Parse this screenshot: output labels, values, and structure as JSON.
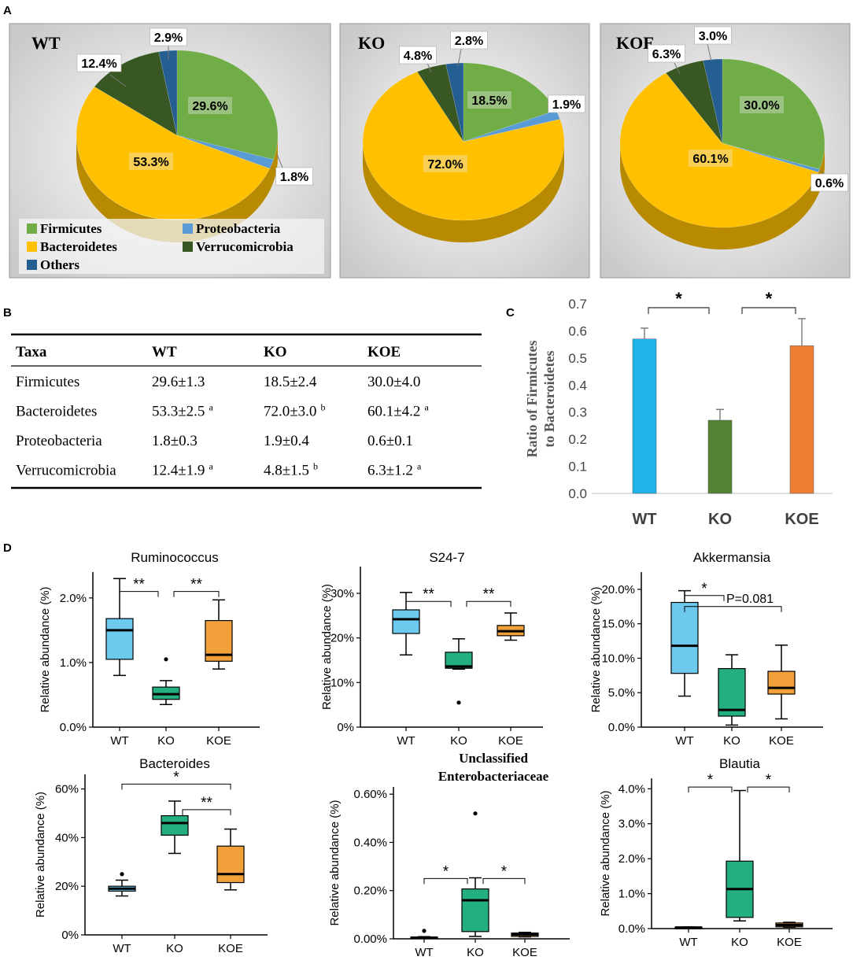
{
  "panels": {
    "a": "A",
    "b": "B",
    "c": "C",
    "d": "D"
  },
  "colors": {
    "firmicutes": "#70AD47",
    "proteobacteria": "#5B9BD5",
    "bacteroidetes": "#FFC000",
    "verrucomicrobia": "#385723",
    "others": "#255E91",
    "wt": "#1EB4EB",
    "ko": "#548235",
    "koe": "#ED7D31",
    "box_wt": "#6DCAEE",
    "box_ko": "#24B07E",
    "box_koe": "#F2A03A"
  },
  "legend": {
    "firmicutes": "Firmicutes",
    "proteobacteria": "Proteobacteria",
    "bacteroidetes": "Bacteroidetes",
    "verrucomicrobia": "Verrucomicrobia",
    "others": "Others"
  },
  "table": {
    "headers": [
      "Taxa",
      "WT",
      "KO",
      "KOE"
    ],
    "rows": [
      {
        "taxa": "Firmicutes",
        "wt": "29.6±1.3",
        "wt_sup": "",
        "ko": "18.5±2.4",
        "ko_sup": "",
        "koe": "30.0±4.0",
        "koe_sup": ""
      },
      {
        "taxa": "Bacteroidetes",
        "wt": "53.3±2.5",
        "wt_sup": "a",
        "ko": "72.0±3.0",
        "ko_sup": "b",
        "koe": "60.1±4.2",
        "koe_sup": "a"
      },
      {
        "taxa": "Proteobacteria",
        "wt": "1.8±0.3",
        "wt_sup": "",
        "ko": "1.9±0.4",
        "ko_sup": "",
        "koe": "0.6±0.1",
        "koe_sup": ""
      },
      {
        "taxa": "Verrucomicrobia",
        "wt": "12.4±1.9",
        "wt_sup": "a",
        "ko": "4.8±1.5",
        "ko_sup": "b",
        "koe": "6.3±1.2",
        "koe_sup": "a"
      }
    ]
  },
  "chart_data": [
    {
      "type": "pie",
      "title": "WT",
      "slices": [
        {
          "name": "Firmicutes",
          "value": 29.6,
          "label": "29.6%"
        },
        {
          "name": "Proteobacteria",
          "value": 1.8,
          "label": "1.8%"
        },
        {
          "name": "Bacteroidetes",
          "value": 53.3,
          "label": "53.3%"
        },
        {
          "name": "Verrucomicrobia",
          "value": 12.4,
          "label": "12.4%"
        },
        {
          "name": "Others",
          "value": 2.9,
          "label": "2.9%"
        }
      ]
    },
    {
      "type": "pie",
      "title": "KO",
      "slices": [
        {
          "name": "Firmicutes",
          "value": 18.5,
          "label": "18.5%"
        },
        {
          "name": "Proteobacteria",
          "value": 1.9,
          "label": "1.9%"
        },
        {
          "name": "Bacteroidetes",
          "value": 72.0,
          "label": "72.0%"
        },
        {
          "name": "Verrucomicrobia",
          "value": 4.8,
          "label": "4.8%"
        },
        {
          "name": "Others",
          "value": 2.8,
          "label": "2.8%"
        }
      ]
    },
    {
      "type": "pie",
      "title": "KOE",
      "slices": [
        {
          "name": "Firmicutes",
          "value": 30.0,
          "label": "30.0%"
        },
        {
          "name": "Proteobacteria",
          "value": 0.6,
          "label": "0.6%"
        },
        {
          "name": "Bacteroidetes",
          "value": 60.1,
          "label": "60.1%"
        },
        {
          "name": "Verrucomicrobia",
          "value": 6.3,
          "label": "6.3%"
        },
        {
          "name": "Others",
          "value": 3.0,
          "label": "3.0%"
        }
      ]
    },
    {
      "type": "bar",
      "title": "",
      "ylabel": "Ratio of Firmicutes to Bacteroidetes",
      "categories": [
        "WT",
        "KO",
        "KOE"
      ],
      "values": [
        0.57,
        0.27,
        0.545
      ],
      "errors": [
        0.04,
        0.04,
        0.1
      ],
      "ylim": [
        0,
        0.7
      ],
      "yticks": [
        "0.0",
        "0.1",
        "0.2",
        "0.3",
        "0.4",
        "0.5",
        "0.6",
        "0.7"
      ],
      "significance": [
        {
          "from": 0,
          "to": 1,
          "label": "*"
        },
        {
          "from": 1,
          "to": 2,
          "label": "*"
        }
      ]
    },
    {
      "type": "box",
      "title": "Ruminococcus",
      "ylabel": "Relative abundance (%)",
      "categories": [
        "WT",
        "KO",
        "KOE"
      ],
      "ylim": [
        0,
        2.4
      ],
      "yticks": [
        {
          "v": 0,
          "t": "0.0%"
        },
        {
          "v": 1,
          "t": "1.0%"
        },
        {
          "v": 2,
          "t": "2.0%"
        }
      ],
      "boxes": [
        {
          "min": 0.8,
          "q1": 1.05,
          "median": 1.5,
          "q3": 1.68,
          "max": 2.3,
          "outliers": []
        },
        {
          "min": 0.35,
          "q1": 0.43,
          "median": 0.51,
          "q3": 0.62,
          "max": 0.72,
          "outliers": [
            1.05
          ]
        },
        {
          "min": 0.9,
          "q1": 1.02,
          "median": 1.12,
          "q3": 1.65,
          "max": 1.97,
          "outliers": []
        }
      ],
      "significance": [
        {
          "from": 0,
          "to": 1,
          "level": 2.1,
          "label": "**"
        },
        {
          "from": 1,
          "to": 2,
          "level": 2.1,
          "label": "**"
        }
      ]
    },
    {
      "type": "box",
      "title": "S24-7",
      "ylabel": "Relative abundance (%)",
      "categories": [
        "WT",
        "KO",
        "KOE"
      ],
      "ylim": [
        0,
        36
      ],
      "yticks": [
        {
          "v": 0,
          "t": "0%"
        },
        {
          "v": 10,
          "t": "10%"
        },
        {
          "v": 20,
          "t": "20%"
        },
        {
          "v": 30,
          "t": "30%"
        }
      ],
      "boxes": [
        {
          "min": 16.2,
          "q1": 21,
          "median": 24.2,
          "q3": 26.3,
          "max": 30.2,
          "outliers": []
        },
        {
          "min": 13,
          "q1": 13.2,
          "median": 13.6,
          "q3": 16.8,
          "max": 19.8,
          "outliers": [
            5.5
          ]
        },
        {
          "min": 19.5,
          "q1": 20.5,
          "median": 21.5,
          "q3": 22.8,
          "max": 25.6,
          "outliers": []
        }
      ],
      "significance": [
        {
          "from": 0,
          "to": 1,
          "level": 28.2,
          "label": "**"
        },
        {
          "from": 1,
          "to": 2,
          "level": 28.2,
          "label": "**"
        }
      ]
    },
    {
      "type": "box",
      "title": "Akkermansia",
      "ylabel": "Relative abundance (%)",
      "categories": [
        "WT",
        "KO",
        "KOE"
      ],
      "ylim": [
        0,
        22.5
      ],
      "yticks": [
        {
          "v": 0,
          "t": "0.0%"
        },
        {
          "v": 5,
          "t": "5.0%"
        },
        {
          "v": 10,
          "t": "10.0%"
        },
        {
          "v": 15,
          "t": "15.0%"
        },
        {
          "v": 20,
          "t": "20.0%"
        }
      ],
      "boxes": [
        {
          "min": 4.5,
          "q1": 7.8,
          "median": 11.8,
          "q3": 18.1,
          "max": 19.8,
          "outliers": []
        },
        {
          "min": 0.3,
          "q1": 1.6,
          "median": 2.5,
          "q3": 8.5,
          "max": 10.5,
          "outliers": []
        },
        {
          "min": 1.2,
          "q1": 4.8,
          "median": 5.7,
          "q3": 8.1,
          "max": 11.9,
          "outliers": []
        }
      ],
      "significance": [
        {
          "from": 0,
          "to": 1,
          "level": 19.1,
          "label": "*"
        },
        {
          "from": 0,
          "to": 2,
          "level": 17.5,
          "label": "P=0.081"
        }
      ]
    },
    {
      "type": "box",
      "title": "Bacteroides",
      "ylabel": "Relative abundance (%)",
      "categories": [
        "WT",
        "KO",
        "KOE"
      ],
      "ylim": [
        0,
        66
      ],
      "yticks": [
        {
          "v": 0,
          "t": "0%"
        },
        {
          "v": 20,
          "t": "20%"
        },
        {
          "v": 40,
          "t": "40%"
        },
        {
          "v": 60,
          "t": "60%"
        }
      ],
      "boxes": [
        {
          "min": 16,
          "q1": 18,
          "median": 19,
          "q3": 20,
          "max": 22.5,
          "outliers": [
            25
          ]
        },
        {
          "min": 33.5,
          "q1": 41,
          "median": 46,
          "q3": 49,
          "max": 55,
          "outliers": []
        },
        {
          "min": 18.5,
          "q1": 21.5,
          "median": 25,
          "q3": 36.5,
          "max": 43.5,
          "outliers": []
        }
      ],
      "significance": [
        {
          "from": 0,
          "to": 2,
          "level": 62,
          "label": "*"
        },
        {
          "from": 1,
          "to": 2,
          "level": 51.5,
          "label": "**"
        }
      ]
    },
    {
      "type": "box",
      "title": "Unclassified Enterobacteriaceae",
      "title_lines": [
        "Unclassified",
        "Enterobacteriaceae"
      ],
      "ylabel": "Relative abundance (%)",
      "categories": [
        "WT",
        "KO",
        "KOE"
      ],
      "ylim": [
        0,
        0.63
      ],
      "yticks": [
        {
          "v": 0,
          "t": "0.00%"
        },
        {
          "v": 0.2,
          "t": "0.20%"
        },
        {
          "v": 0.4,
          "t": "0.40%"
        },
        {
          "v": 0.6,
          "t": "0.60%"
        }
      ],
      "boxes": [
        {
          "min": 0.003,
          "q1": 0.003,
          "median": 0.005,
          "q3": 0.007,
          "max": 0.009,
          "outliers": [
            0.033
          ]
        },
        {
          "min": 0.01,
          "q1": 0.03,
          "median": 0.16,
          "q3": 0.207,
          "max": 0.253,
          "outliers": [
            0.52
          ]
        },
        {
          "min": 0.008,
          "q1": 0.01,
          "median": 0.018,
          "q3": 0.024,
          "max": 0.027,
          "outliers": []
        }
      ],
      "significance": [
        {
          "from": 0,
          "to": 1,
          "level": 0.25,
          "label": "*"
        },
        {
          "from": 1,
          "to": 2,
          "level": 0.25,
          "label": "*"
        }
      ]
    },
    {
      "type": "box",
      "title": "Blautia",
      "ylabel": "Relative abundance (%)",
      "categories": [
        "WT",
        "KO",
        "KOE"
      ],
      "ylim": [
        0,
        4.3
      ],
      "yticks": [
        {
          "v": 0,
          "t": "0.0%"
        },
        {
          "v": 1,
          "t": "1.0%"
        },
        {
          "v": 2,
          "t": "2.0%"
        },
        {
          "v": 3,
          "t": "3.0%"
        },
        {
          "v": 4,
          "t": "4.0%"
        }
      ],
      "boxes": [
        {
          "min": 0.01,
          "q1": 0.02,
          "median": 0.03,
          "q3": 0.04,
          "max": 0.05,
          "outliers": []
        },
        {
          "min": 0.22,
          "q1": 0.32,
          "median": 1.13,
          "q3": 1.93,
          "max": 3.95,
          "outliers": []
        },
        {
          "min": 0.04,
          "q1": 0.05,
          "median": 0.1,
          "q3": 0.16,
          "max": 0.18,
          "outliers": []
        }
      ],
      "significance": [
        {
          "from": 0,
          "to": 1,
          "level": 4.05,
          "label": "*"
        },
        {
          "from": 1,
          "to": 2,
          "level": 4.05,
          "label": "*"
        }
      ]
    }
  ]
}
